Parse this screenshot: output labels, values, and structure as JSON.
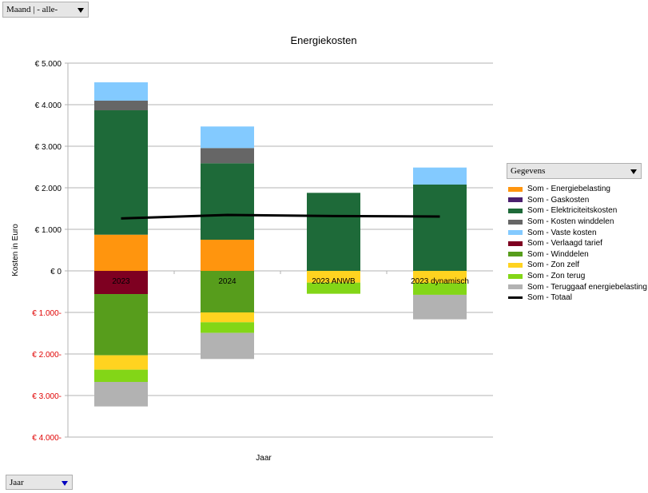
{
  "filters": {
    "page_field": "Maand | - alle-",
    "row_field": "Jaar",
    "data_field": "Gegevens"
  },
  "chart_data": {
    "type": "bar",
    "stacked": true,
    "title": "Energiekosten",
    "xlabel": "Jaar",
    "ylabel": "Kosten in Euro",
    "ylim": [
      -4000,
      5000
    ],
    "yticks": [
      {
        "v": 5000,
        "label": "€ 5.000"
      },
      {
        "v": 4000,
        "label": "€ 4.000"
      },
      {
        "v": 3000,
        "label": "€ 3.000"
      },
      {
        "v": 2000,
        "label": "€ 2.000"
      },
      {
        "v": 1000,
        "label": "€ 1.000"
      },
      {
        "v": 0,
        "label": "€ 0"
      },
      {
        "v": -1000,
        "label": "€ 1.000-"
      },
      {
        "v": -2000,
        "label": "€ 2.000-"
      },
      {
        "v": -3000,
        "label": "€ 3.000-"
      },
      {
        "v": -4000,
        "label": "€ 4.000-"
      }
    ],
    "negative_tick_color": "#e00000",
    "categories": [
      "2023",
      "2024",
      "2023 ANWB",
      "2023 dynamisch"
    ],
    "series": [
      {
        "name": "Som - Energiebelasting",
        "color": "#ff950e",
        "values": [
          871,
          750,
          0,
          0
        ]
      },
      {
        "name": "Som - Gaskosten",
        "color": "#4b1f6f",
        "values": [
          0,
          0,
          0,
          0
        ]
      },
      {
        "name": "Som - Elektriciteitskosten",
        "color": "#1e6a39",
        "values": [
          2994,
          1840,
          1878,
          2077
        ]
      },
      {
        "name": "Som - Kosten winddelen",
        "color": "#666666",
        "values": [
          231,
          366,
          0,
          0
        ]
      },
      {
        "name": "Som - Vaste kosten",
        "color": "#83caff",
        "values": [
          442,
          519,
          0,
          410
        ]
      },
      {
        "name": "Som - Verlaagd tarief",
        "color": "#7e0021",
        "values": [
          -558,
          0,
          0,
          0
        ]
      },
      {
        "name": "Som - Winddelen",
        "color": "#579d1c",
        "values": [
          -1474,
          -1000,
          0,
          0
        ]
      },
      {
        "name": "Som - Zon zelf",
        "color": "#ffd320",
        "values": [
          -346,
          -237,
          -282,
          -288
        ]
      },
      {
        "name": "Som - Zon terug",
        "color": "#83d617",
        "values": [
          -295,
          -256,
          -269,
          -288
        ]
      },
      {
        "name": "Som - Teruggaaf energiebelasting",
        "color": "#b2b2b2",
        "values": [
          -590,
          -628,
          0,
          -590
        ]
      }
    ],
    "line": {
      "name": "Som - Totaal",
      "color": "#000000",
      "values": [
        1263,
        1346,
        1320,
        1308
      ]
    },
    "legend": "right"
  }
}
